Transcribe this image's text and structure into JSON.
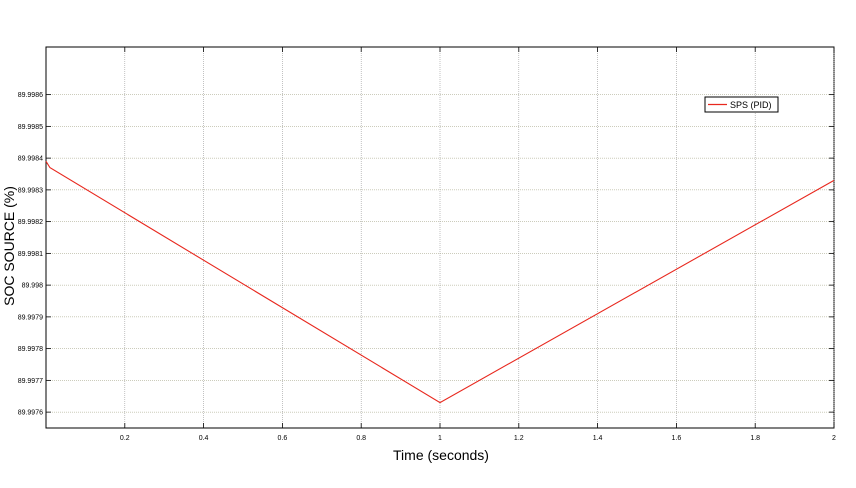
{
  "chart_data": {
    "type": "line",
    "title": "",
    "xlabel": "Time (seconds)",
    "ylabel": "SOC SOURCE (%)",
    "xlim": [
      0,
      2
    ],
    "ylim": [
      89.99755,
      89.99875
    ],
    "x_ticks": [
      0.2,
      0.4,
      0.6,
      0.8,
      1,
      1.2,
      1.4,
      1.6,
      1.8,
      2
    ],
    "x_tick_labels": [
      "0.2",
      "0.4",
      "0.6",
      "0.8",
      "1",
      "1.2",
      "1.4",
      "1.6",
      "1.8",
      "2"
    ],
    "y_ticks": [
      89.9976,
      89.9977,
      89.9978,
      89.9979,
      89.998,
      89.9981,
      89.9982,
      89.9983,
      89.9984,
      89.9985,
      89.9986
    ],
    "y_tick_labels": [
      "89.9976",
      "89.9977",
      "89.9978",
      "89.9979",
      "89.998",
      "89.9981",
      "89.9982",
      "89.9983",
      "89.9984",
      "89.9985",
      "89.9986"
    ],
    "grid": true,
    "legend_position": "top-right",
    "series": [
      {
        "name": "SPS (PID)",
        "color": "#e8281e",
        "x": [
          0,
          0.01,
          1.0,
          2.0
        ],
        "y": [
          89.99839,
          89.99837,
          89.99763,
          89.99833
        ]
      }
    ]
  }
}
